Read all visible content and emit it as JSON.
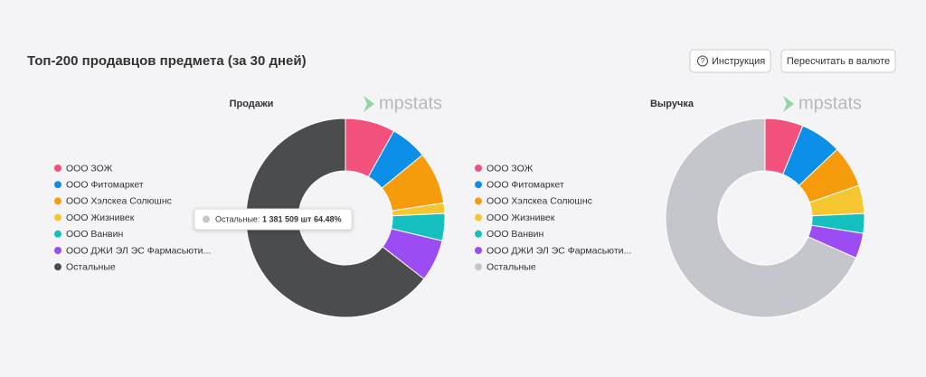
{
  "header": {
    "title": "Топ-200 продавцов предмета (за 30 дней)",
    "buttons": [
      "Инструкция",
      "Пересчитать в валюте"
    ]
  },
  "chart_data": [
    {
      "type": "pie",
      "donut": true,
      "title": "Продажи",
      "watermark": "mpstats",
      "categories": [
        "ООО ЗОЖ",
        "ООО Фитомаркет",
        "ООО Хэлскеа Солюшнс",
        "ООО Жизнивек",
        "ООО Ванвин",
        "ООО ДЖИ ЭЛ ЭС Фармасьюти...",
        "Остальные"
      ],
      "values": [
        8.1,
        6.0,
        8.5,
        1.7,
        4.4,
        6.82,
        64.48
      ],
      "colors": [
        "#f2517b",
        "#0c8fe8",
        "#f59b0c",
        "#f5c630",
        "#14bfbf",
        "#9b4cf2",
        "#4b4c4e"
      ]
    },
    {
      "type": "pie",
      "donut": true,
      "title": "Выручка",
      "watermark": "mpstats",
      "categories": [
        "ООО ЗОЖ",
        "ООО Фитомаркет",
        "ООО Хэлскеа Солюшнс",
        "ООО Жизнивек",
        "ООО Ванвин",
        "ООО ДЖИ ЭЛ ЭС Фармасьюти...",
        "Остальные"
      ],
      "values": [
        6.2,
        6.7,
        6.8,
        4.6,
        3.2,
        4.1,
        68.4
      ],
      "colors": [
        "#f2517b",
        "#0c8fe8",
        "#f59b0c",
        "#f5c630",
        "#14bfbf",
        "#9b4cf2",
        "#c4c6cc"
      ]
    }
  ],
  "tooltip": {
    "label": "Остальные:",
    "value": "1 381 509 шт 64.48%"
  }
}
